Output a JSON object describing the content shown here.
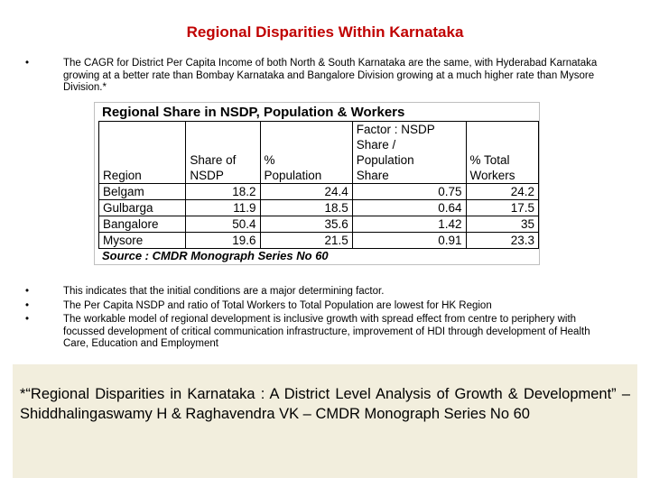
{
  "slide": {
    "title": "Regional Disparities Within Karnataka",
    "top_bullets": [
      "The CAGR for District Per Capita Income of both North & South Karnataka are the same, with Hyderabad Karnataka growing at a better rate than Bombay Karnataka and Bangalore Division growing at a much higher rate than Mysore Division.*"
    ],
    "bottom_bullets": [
      "This indicates that the initial conditions are a major determining factor.",
      "The Per Capita NSDP and ratio of Total Workers to Total Population are lowest for HK Region",
      "The workable model of regional development is inclusive growth with spread effect from centre to periphery with focussed development of critical communication infrastructure, improvement of HDI through development of Health Care, Education and Employment"
    ],
    "bullet_glyph": "•"
  },
  "table": {
    "title": "Regional Share in NSDP, Population & Workers",
    "headers": {
      "region": "Region",
      "nsdp_line1": "Share of",
      "nsdp_line2": "NSDP",
      "pop_line1": "%",
      "pop_line2": "Population",
      "factor_line1": "Factor : NSDP",
      "factor_line2": "Share /",
      "factor_line3": "Population",
      "factor_line4": "Share",
      "workers_line1": "% Total",
      "workers_line2": "Workers"
    },
    "rows": [
      {
        "region": "Belgam",
        "nsdp": "18.2",
        "population": "24.4",
        "factor": "0.75",
        "workers": "24.2"
      },
      {
        "region": "Gulbarga",
        "nsdp": "11.9",
        "population": "18.5",
        "factor": "0.64",
        "workers": "17.5"
      },
      {
        "region": "Bangalore",
        "nsdp": "50.4",
        "population": "35.6",
        "factor": "1.42",
        "workers": "35"
      },
      {
        "region": "Mysore",
        "nsdp": "19.6",
        "population": "21.5",
        "factor": "0.91",
        "workers": "23.3"
      }
    ],
    "source": "Source : CMDR Monograph Series No 60"
  },
  "reference": {
    "text": "*“Regional Disparities in Karnataka : A District Level Analysis of Growth & Development” – Shiddhalingaswamy H & Raghavendra VK – CMDR Monograph Series No 60"
  },
  "colors": {
    "title": "#c00000",
    "reference_background": "#f2eedd"
  }
}
